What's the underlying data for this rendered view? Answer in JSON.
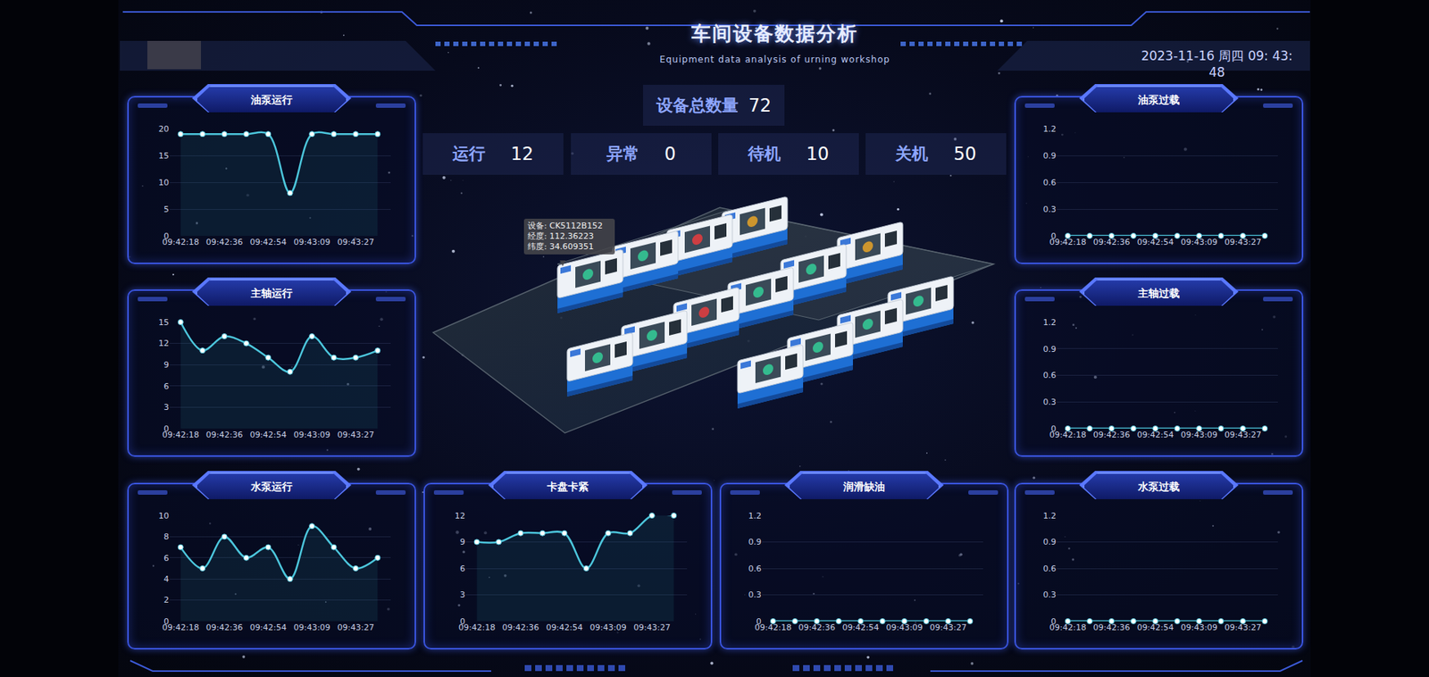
{
  "header": {
    "title": "车间设备数据分析",
    "subtitle": "Equipment data analysis of urning workshop",
    "datetime": "2023-11-16 周四 09: 43: 48"
  },
  "summary": {
    "total": {
      "label": "设备总数量",
      "value": "72"
    },
    "stats": [
      {
        "label": "运行",
        "value": "12"
      },
      {
        "label": "异常",
        "value": "0"
      },
      {
        "label": "待机",
        "value": "10"
      },
      {
        "label": "关机",
        "value": "50"
      }
    ]
  },
  "tooltip": {
    "lines": [
      "设备: CK5112B152",
      "经度: 112.36223",
      "纬度: 34.609351"
    ]
  },
  "chart_data": [
    {
      "type": "line",
      "title": "油泵运行",
      "categories": [
        "09:42:18",
        null,
        "09:42:36",
        null,
        "09:42:54",
        null,
        "09:43:09",
        null,
        "09:43:27",
        null
      ],
      "values": [
        19,
        19,
        19,
        19,
        19,
        8,
        19,
        19,
        19,
        19
      ],
      "color": "#4cc6dc",
      "ylim": [
        0,
        20
      ],
      "yticks": [
        0,
        5,
        10,
        15,
        20
      ],
      "grid": true,
      "marker": "circle",
      "line_style": "smooth"
    },
    {
      "type": "line",
      "title": "主轴运行",
      "categories": [
        "09:42:18",
        null,
        "09:42:36",
        null,
        "09:42:54",
        null,
        "09:43:09",
        null,
        "09:43:27",
        null
      ],
      "values": [
        15,
        11,
        13,
        12,
        10,
        8,
        13,
        10,
        10,
        11
      ],
      "color": "#4cc6dc",
      "ylim": [
        0,
        15
      ],
      "yticks": [
        0,
        3,
        6,
        9,
        12,
        15
      ],
      "grid": true,
      "marker": "circle",
      "line_style": "smooth"
    },
    {
      "type": "line",
      "title": "水泵运行",
      "categories": [
        "09:42:18",
        null,
        "09:42:36",
        null,
        "09:42:54",
        null,
        "09:43:09",
        null,
        "09:43:27",
        null
      ],
      "values": [
        7,
        5,
        8,
        6,
        7,
        4,
        9,
        7,
        5,
        6
      ],
      "color": "#4cc6dc",
      "ylim": [
        0,
        10
      ],
      "yticks": [
        0,
        2,
        4,
        6,
        8,
        10
      ],
      "grid": true,
      "marker": "circle",
      "line_style": "smooth"
    },
    {
      "type": "line",
      "title": "卡盘卡紧",
      "categories": [
        "09:42:18",
        null,
        "09:42:36",
        null,
        "09:42:54",
        null,
        "09:43:09",
        null,
        "09:43:27",
        null
      ],
      "values": [
        9,
        9,
        10,
        10,
        10,
        6,
        10,
        10,
        12,
        12
      ],
      "color": "#4cc6dc",
      "ylim": [
        0,
        12
      ],
      "yticks": [
        0,
        3,
        6,
        9,
        12
      ],
      "grid": true,
      "marker": "circle",
      "line_style": "smooth"
    },
    {
      "type": "line",
      "title": "润滑缺油",
      "categories": [
        "09:42:18",
        null,
        "09:42:36",
        null,
        "09:42:54",
        null,
        "09:43:09",
        null,
        "09:43:27",
        null
      ],
      "values": [
        0,
        0,
        0,
        0,
        0,
        0,
        0,
        0,
        0,
        0
      ],
      "color": "#4cc6dc",
      "ylim": [
        0,
        1.2
      ],
      "yticks": [
        0,
        0.3,
        0.6,
        0.9,
        1.2
      ],
      "grid": true,
      "marker": "circle",
      "line_style": "smooth"
    },
    {
      "type": "line",
      "title": "油泵过载",
      "categories": [
        "09:42:18",
        null,
        "09:42:36",
        null,
        "09:42:54",
        null,
        "09:43:09",
        null,
        "09:43:27",
        null
      ],
      "values": [
        0,
        0,
        0,
        0,
        0,
        0,
        0,
        0,
        0,
        0
      ],
      "color": "#4cc6dc",
      "ylim": [
        0,
        1.2
      ],
      "yticks": [
        0,
        0.3,
        0.6,
        0.9,
        1.2
      ],
      "grid": true,
      "marker": "circle",
      "line_style": "smooth"
    },
    {
      "type": "line",
      "title": "主轴过载",
      "categories": [
        "09:42:18",
        null,
        "09:42:36",
        null,
        "09:42:54",
        null,
        "09:43:09",
        null,
        "09:43:27",
        null
      ],
      "values": [
        0,
        0,
        0,
        0,
        0,
        0,
        0,
        0,
        0,
        0
      ],
      "color": "#4cc6dc",
      "ylim": [
        0,
        1.2
      ],
      "yticks": [
        0,
        0.3,
        0.6,
        0.9,
        1.2
      ],
      "grid": true,
      "marker": "circle",
      "line_style": "smooth"
    },
    {
      "type": "line",
      "title": "水泵过载",
      "categories": [
        "09:42:18",
        null,
        "09:42:36",
        null,
        "09:42:54",
        null,
        "09:43:09",
        null,
        "09:43:27",
        null
      ],
      "values": [
        0,
        0,
        0,
        0,
        0,
        0,
        0,
        0,
        0,
        0
      ],
      "color": "#4cc6dc",
      "ylim": [
        0,
        1.2
      ],
      "yticks": [
        0,
        0.3,
        0.6,
        0.9,
        1.2
      ],
      "grid": true,
      "marker": "circle",
      "line_style": "smooth"
    }
  ]
}
